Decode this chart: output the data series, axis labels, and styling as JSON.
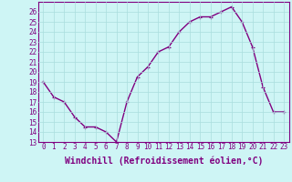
{
  "x": [
    0,
    1,
    2,
    3,
    4,
    5,
    6,
    7,
    8,
    9,
    10,
    11,
    12,
    13,
    14,
    15,
    16,
    17,
    18,
    19,
    20,
    21,
    22,
    23
  ],
  "y": [
    19,
    17.5,
    17,
    15.5,
    14.5,
    14.5,
    14,
    13,
    17,
    19.5,
    20.5,
    22,
    22.5,
    24,
    25,
    25.5,
    25.5,
    26,
    26.5,
    25,
    22.5,
    18.5,
    16,
    16
  ],
  "line_color": "#800080",
  "marker": "+",
  "marker_color": "#800080",
  "bg_color": "#cef5f5",
  "grid_color": "#aadddd",
  "xlabel": "Windchill (Refroidissement éolien,°C)",
  "ylim": [
    13,
    27
  ],
  "yticks": [
    13,
    14,
    15,
    16,
    17,
    18,
    19,
    20,
    21,
    22,
    23,
    24,
    25,
    26
  ],
  "xticks": [
    0,
    1,
    2,
    3,
    4,
    5,
    6,
    7,
    8,
    9,
    10,
    11,
    12,
    13,
    14,
    15,
    16,
    17,
    18,
    19,
    20,
    21,
    22,
    23
  ],
  "tick_label_fontsize": 5.5,
  "xlabel_fontsize": 7.0,
  "line_width": 1.0,
  "marker_size": 3.5
}
